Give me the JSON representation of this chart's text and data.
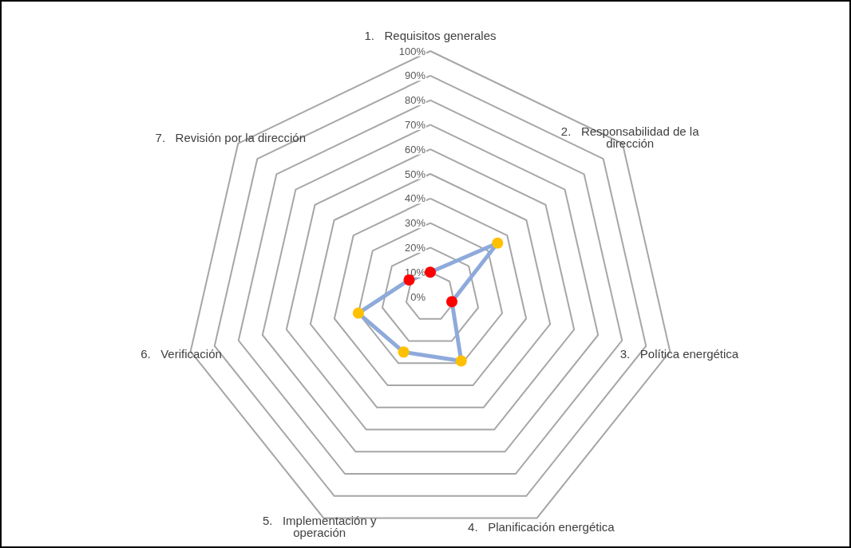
{
  "chart_data": {
    "type": "radar",
    "categories": [
      "1.   Requisitos generales",
      "2.   Responsabilidad de la dirección",
      "3.   Política energética",
      "4.   Planificación energética",
      "5.   Implementación y operación",
      "6.   Verificación",
      "7.   Revisión por la dirección"
    ],
    "series": [
      {
        "color": "#8eaadb",
        "values": [
          10,
          35,
          9,
          29,
          25,
          30,
          11
        ],
        "colors": [
          "#ff0000",
          "#ffc000",
          "#ff0000",
          "#ffc000",
          "#ffc000",
          "#ffc000",
          "#ff0000"
        ]
      }
    ],
    "ylim": [
      0,
      100
    ],
    "yticks": [
      {
        "value": 0,
        "label": "0%"
      },
      {
        "value": 10,
        "label": "10%"
      },
      {
        "value": 20,
        "label": "20%"
      },
      {
        "value": 30,
        "label": "30%"
      },
      {
        "value": 40,
        "label": "40%"
      },
      {
        "value": 50,
        "label": "50%"
      },
      {
        "value": 60,
        "label": "60%"
      },
      {
        "value": 70,
        "label": "70%"
      },
      {
        "value": 80,
        "label": "80%"
      },
      {
        "value": 90,
        "label": "90%"
      },
      {
        "value": 100,
        "label": "100%"
      }
    ],
    "marker": "circle"
  }
}
